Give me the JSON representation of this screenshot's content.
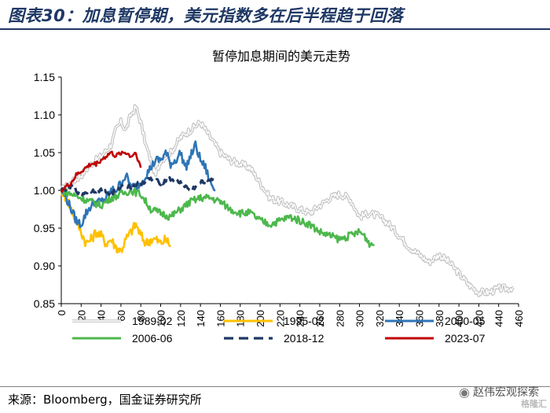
{
  "header": {
    "title": "图表30：加息暂停期，美元指数多在后半程趋于回落"
  },
  "footer": {
    "source": "来源：Bloomberg，国金证券研究所",
    "brand": "赵伟宏观探索",
    "watermark": "格隆汇"
  },
  "icons": {
    "brand_icon": "wechat-icon"
  },
  "chart_data": {
    "type": "line",
    "title": "暂停加息期间的美元走势",
    "xlim": [
      0,
      460
    ],
    "ylim": [
      0.85,
      1.15
    ],
    "x_ticks": [
      0,
      20,
      40,
      60,
      80,
      100,
      120,
      140,
      160,
      180,
      200,
      220,
      240,
      260,
      280,
      300,
      320,
      340,
      360,
      380,
      400,
      420,
      440,
      460
    ],
    "y_ticks": [
      0.85,
      0.9,
      0.95,
      1.0,
      1.05,
      1.1,
      1.15
    ],
    "y_tick_labels": [
      "0.85",
      "0.90",
      "0.95",
      "1.00",
      "1.05",
      "1.10",
      "1.15"
    ],
    "legend_position": "bottom",
    "series": [
      {
        "name": "1989-02",
        "color": "#bfbfbf",
        "style": "double",
        "noise": 0.005,
        "x": [
          0,
          10,
          20,
          30,
          40,
          50,
          55,
          60,
          65,
          70,
          75,
          80,
          85,
          90,
          95,
          100,
          110,
          120,
          130,
          140,
          150,
          160,
          170,
          180,
          190,
          200,
          210,
          220,
          230,
          240,
          250,
          260,
          270,
          280,
          290,
          300,
          310,
          320,
          330,
          340,
          350,
          360,
          370,
          380,
          390,
          400,
          410,
          420,
          430,
          440,
          450,
          455
        ],
        "y": [
          1.0,
          1.01,
          1.02,
          1.035,
          1.045,
          1.06,
          1.08,
          1.09,
          1.08,
          1.1,
          1.11,
          1.09,
          1.06,
          1.04,
          1.02,
          1.04,
          1.05,
          1.07,
          1.08,
          1.09,
          1.07,
          1.05,
          1.04,
          1.035,
          1.03,
          1.01,
          0.99,
          0.985,
          0.98,
          0.975,
          0.97,
          0.98,
          0.99,
          0.995,
          0.99,
          0.965,
          0.97,
          0.965,
          0.955,
          0.94,
          0.925,
          0.915,
          0.905,
          0.915,
          0.905,
          0.89,
          0.875,
          0.865,
          0.865,
          0.87,
          0.87,
          0.872
        ]
      },
      {
        "name": "1995-02",
        "color": "#ffc000",
        "style": "solid",
        "noise": 0.007,
        "x": [
          0,
          5,
          10,
          15,
          20,
          25,
          30,
          35,
          40,
          45,
          50,
          55,
          60,
          65,
          70,
          75,
          80,
          85,
          90,
          95,
          100,
          105,
          110
        ],
        "y": [
          1.0,
          0.99,
          0.975,
          0.96,
          0.945,
          0.93,
          0.935,
          0.945,
          0.94,
          0.93,
          0.935,
          0.925,
          0.92,
          0.935,
          0.945,
          0.955,
          0.94,
          0.93,
          0.935,
          0.935,
          0.93,
          0.935,
          0.927
        ]
      },
      {
        "name": "2000-05",
        "color": "#2e75b6",
        "style": "solid",
        "noise": 0.006,
        "x": [
          0,
          5,
          10,
          15,
          20,
          25,
          30,
          35,
          40,
          45,
          50,
          55,
          60,
          65,
          70,
          75,
          80,
          85,
          90,
          95,
          100,
          105,
          110,
          115,
          120,
          125,
          130,
          135,
          140,
          145,
          150,
          155
        ],
        "y": [
          1.0,
          0.99,
          0.975,
          0.96,
          0.955,
          0.97,
          0.98,
          0.985,
          0.985,
          0.99,
          1.0,
          1.0,
          1.01,
          1.02,
          1.005,
          1.005,
          1.01,
          1.02,
          1.03,
          1.04,
          1.04,
          1.05,
          1.035,
          1.04,
          1.05,
          1.03,
          1.045,
          1.06,
          1.04,
          1.03,
          1.01,
          1.0
        ]
      },
      {
        "name": "2006-06",
        "color": "#4cb84c",
        "style": "solid",
        "noise": 0.005,
        "x": [
          0,
          10,
          20,
          30,
          40,
          50,
          60,
          70,
          80,
          90,
          100,
          110,
          120,
          130,
          140,
          150,
          160,
          170,
          180,
          190,
          200,
          210,
          220,
          230,
          240,
          250,
          260,
          270,
          280,
          290,
          300,
          305,
          310,
          315
        ],
        "y": [
          1.0,
          0.995,
          0.99,
          0.985,
          0.98,
          0.99,
          0.995,
          1.0,
          0.995,
          0.975,
          0.97,
          0.965,
          0.975,
          0.985,
          0.99,
          0.99,
          0.985,
          0.975,
          0.97,
          0.97,
          0.96,
          0.955,
          0.96,
          0.965,
          0.96,
          0.955,
          0.945,
          0.94,
          0.935,
          0.94,
          0.945,
          0.94,
          0.93,
          0.928
        ]
      },
      {
        "name": "2018-12",
        "color": "#1f3864",
        "style": "dashed",
        "noise": 0.003,
        "x": [
          0,
          10,
          20,
          30,
          40,
          50,
          60,
          70,
          80,
          90,
          100,
          110,
          120,
          130,
          140,
          150,
          155
        ],
        "y": [
          1.0,
          1.005,
          0.995,
          1.0,
          1.0,
          0.995,
          1.005,
          1.005,
          1.01,
          1.015,
          1.01,
          1.015,
          1.01,
          1.0,
          1.01,
          1.015,
          1.015
        ]
      },
      {
        "name": "2023-07",
        "color": "#c00000",
        "style": "solid",
        "noise": 0.003,
        "x": [
          0,
          5,
          10,
          15,
          20,
          25,
          30,
          35,
          40,
          45,
          50,
          55,
          60,
          65,
          70,
          75,
          80
        ],
        "y": [
          1.0,
          1.005,
          1.01,
          1.02,
          1.025,
          1.03,
          1.035,
          1.035,
          1.04,
          1.045,
          1.05,
          1.045,
          1.05,
          1.05,
          1.045,
          1.05,
          1.03
        ]
      }
    ]
  }
}
